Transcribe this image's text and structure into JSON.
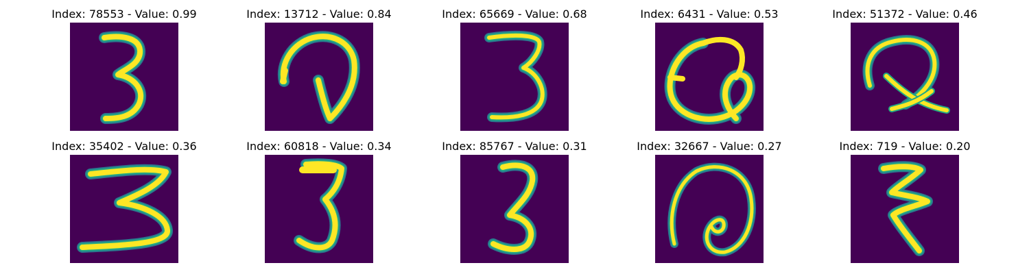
{
  "colors": {
    "background": "#440154",
    "stroke_core": "#fde725",
    "stroke_edge": "#22a884",
    "stroke_outer": "#2a788e"
  },
  "panels": [
    {
      "index": "78553",
      "value": "0.99",
      "title": "Index: 78553 - Value: 0.99",
      "depicts": "handwritten-3"
    },
    {
      "index": "13712",
      "value": "0.84",
      "title": "Index: 13712 - Value: 0.84",
      "depicts": "handwritten-loop-stroke"
    },
    {
      "index": "65669",
      "value": "0.68",
      "title": "Index: 65669 - Value: 0.68",
      "depicts": "handwritten-3"
    },
    {
      "index": "6431",
      "value": "0.53",
      "title": "Index: 6431 - Value: 0.53",
      "depicts": "handwritten-curl-stroke"
    },
    {
      "index": "51372",
      "value": "0.46",
      "title": "Index: 51372 - Value: 0.46",
      "depicts": "handwritten-cross-stroke"
    },
    {
      "index": "35402",
      "value": "0.36",
      "title": "Index: 35402 - Value: 0.36",
      "depicts": "handwritten-3"
    },
    {
      "index": "60818",
      "value": "0.34",
      "title": "Index: 60818 - Value: 0.34",
      "depicts": "handwritten-3"
    },
    {
      "index": "85767",
      "value": "0.31",
      "title": "Index: 85767 - Value: 0.31",
      "depicts": "handwritten-3"
    },
    {
      "index": "32667",
      "value": "0.27",
      "title": "Index: 32667 - Value: 0.27",
      "depicts": "handwritten-spiral-stroke"
    },
    {
      "index": "719",
      "value": "0.20",
      "title": "Index: 719 - Value: 0.20",
      "depicts": "handwritten-zigzag-stroke"
    }
  ]
}
